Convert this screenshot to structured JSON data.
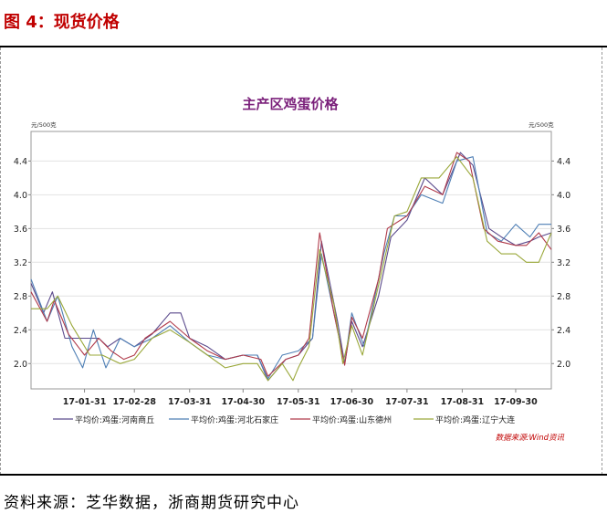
{
  "figure": {
    "label": "图 4：现货价格",
    "source": "资料来源：芝华数据，浙商期货研究中心",
    "credit": "数据来源:Wind资讯"
  },
  "chart_data": {
    "type": "line",
    "title": "主产区鸡蛋价格",
    "ylabel_left": "元/500克",
    "ylabel_right": "元/500克",
    "ylim": [
      1.7,
      4.75
    ],
    "yticks": [
      2.0,
      2.4,
      2.8,
      3.2,
      3.6,
      4.0,
      4.4
    ],
    "ytick_labels": [
      "2.0",
      "2.4",
      "2.8",
      "3.2",
      "3.6",
      "4.0",
      "4.4"
    ],
    "xlim": [
      "2017-01-01",
      "2017-10-20"
    ],
    "xticks": [
      "2017-01-31",
      "2017-02-28",
      "2017-03-31",
      "2017-04-30",
      "2017-05-31",
      "2017-06-30",
      "2017-07-31",
      "2017-08-31",
      "2017-09-30"
    ],
    "xtick_labels": [
      "17-01-31",
      "17-02-28",
      "17-03-31",
      "17-04-30",
      "17-05-31",
      "17-06-30",
      "17-07-31",
      "17-08-31",
      "17-09-30"
    ],
    "grid": true,
    "legend_position": "bottom",
    "series": [
      {
        "name": "平均价:鸡蛋:河南商丘",
        "color": "#5b4a8c",
        "points": [
          [
            "2017-01-01",
            2.95
          ],
          [
            "2017-01-08",
            2.6
          ],
          [
            "2017-01-13",
            2.85
          ],
          [
            "2017-01-20",
            2.3
          ],
          [
            "2017-01-31",
            2.3
          ],
          [
            "2017-02-08",
            2.3
          ],
          [
            "2017-02-13",
            2.2
          ],
          [
            "2017-02-20",
            2.3
          ],
          [
            "2017-02-28",
            2.2
          ],
          [
            "2017-03-10",
            2.35
          ],
          [
            "2017-03-20",
            2.6
          ],
          [
            "2017-03-26",
            2.6
          ],
          [
            "2017-03-31",
            2.3
          ],
          [
            "2017-04-10",
            2.2
          ],
          [
            "2017-04-20",
            2.05
          ],
          [
            "2017-04-30",
            2.1
          ],
          [
            "2017-05-08",
            2.1
          ],
          [
            "2017-05-14",
            1.8
          ],
          [
            "2017-05-24",
            2.05
          ],
          [
            "2017-05-31",
            2.1
          ],
          [
            "2017-06-08",
            2.3
          ],
          [
            "2017-06-13",
            3.45
          ],
          [
            "2017-06-22",
            2.5
          ],
          [
            "2017-06-26",
            2.0
          ],
          [
            "2017-06-30",
            2.5
          ],
          [
            "2017-07-06",
            2.2
          ],
          [
            "2017-07-15",
            2.8
          ],
          [
            "2017-07-22",
            3.5
          ],
          [
            "2017-07-31",
            3.7
          ],
          [
            "2017-08-10",
            4.2
          ],
          [
            "2017-08-20",
            4.0
          ],
          [
            "2017-08-30",
            4.5
          ],
          [
            "2017-09-06",
            4.35
          ],
          [
            "2017-09-15",
            3.6
          ],
          [
            "2017-09-22",
            3.5
          ],
          [
            "2017-09-30",
            3.4
          ],
          [
            "2017-10-08",
            3.45
          ],
          [
            "2017-10-13",
            3.5
          ],
          [
            "2017-10-20",
            3.55
          ]
        ]
      },
      {
        "name": "平均价:鸡蛋:河北石家庄",
        "color": "#4e7fb5",
        "points": [
          [
            "2017-01-01",
            3.0
          ],
          [
            "2017-01-10",
            2.5
          ],
          [
            "2017-01-16",
            2.8
          ],
          [
            "2017-01-24",
            2.2
          ],
          [
            "2017-01-30",
            1.95
          ],
          [
            "2017-02-05",
            2.4
          ],
          [
            "2017-02-12",
            1.95
          ],
          [
            "2017-02-20",
            2.3
          ],
          [
            "2017-02-28",
            2.2
          ],
          [
            "2017-03-10",
            2.3
          ],
          [
            "2017-03-20",
            2.45
          ],
          [
            "2017-03-31",
            2.25
          ],
          [
            "2017-04-10",
            2.1
          ],
          [
            "2017-04-20",
            2.05
          ],
          [
            "2017-04-30",
            2.1
          ],
          [
            "2017-05-08",
            2.1
          ],
          [
            "2017-05-14",
            1.82
          ],
          [
            "2017-05-22",
            2.1
          ],
          [
            "2017-05-31",
            2.15
          ],
          [
            "2017-06-08",
            2.3
          ],
          [
            "2017-06-13",
            3.3
          ],
          [
            "2017-06-20",
            2.6
          ],
          [
            "2017-06-26",
            2.0
          ],
          [
            "2017-06-30",
            2.6
          ],
          [
            "2017-07-07",
            2.2
          ],
          [
            "2017-07-18",
            3.3
          ],
          [
            "2017-07-24",
            3.75
          ],
          [
            "2017-07-31",
            3.75
          ],
          [
            "2017-08-08",
            4.0
          ],
          [
            "2017-08-20",
            3.9
          ],
          [
            "2017-08-28",
            4.4
          ],
          [
            "2017-09-06",
            4.45
          ],
          [
            "2017-09-14",
            3.55
          ],
          [
            "2017-09-22",
            3.45
          ],
          [
            "2017-09-30",
            3.65
          ],
          [
            "2017-10-08",
            3.5
          ],
          [
            "2017-10-13",
            3.65
          ],
          [
            "2017-10-20",
            3.65
          ]
        ]
      },
      {
        "name": "平均价:鸡蛋:山东德州",
        "color": "#b03a4a",
        "points": [
          [
            "2017-01-01",
            2.85
          ],
          [
            "2017-01-10",
            2.5
          ],
          [
            "2017-01-14",
            2.75
          ],
          [
            "2017-01-22",
            2.35
          ],
          [
            "2017-01-31",
            2.1
          ],
          [
            "2017-02-08",
            2.3
          ],
          [
            "2017-02-15",
            2.15
          ],
          [
            "2017-02-22",
            2.05
          ],
          [
            "2017-02-28",
            2.1
          ],
          [
            "2017-03-06",
            2.3
          ],
          [
            "2017-03-20",
            2.5
          ],
          [
            "2017-03-31",
            2.3
          ],
          [
            "2017-04-10",
            2.15
          ],
          [
            "2017-04-20",
            2.05
          ],
          [
            "2017-04-30",
            2.1
          ],
          [
            "2017-05-10",
            2.05
          ],
          [
            "2017-05-14",
            1.85
          ],
          [
            "2017-05-24",
            2.05
          ],
          [
            "2017-05-31",
            2.1
          ],
          [
            "2017-06-06",
            2.3
          ],
          [
            "2017-06-12",
            3.55
          ],
          [
            "2017-06-20",
            2.6
          ],
          [
            "2017-06-26",
            1.98
          ],
          [
            "2017-06-30",
            2.55
          ],
          [
            "2017-07-06",
            2.3
          ],
          [
            "2017-07-15",
            3.0
          ],
          [
            "2017-07-20",
            3.6
          ],
          [
            "2017-07-31",
            3.75
          ],
          [
            "2017-08-10",
            4.1
          ],
          [
            "2017-08-20",
            4.0
          ],
          [
            "2017-08-28",
            4.5
          ],
          [
            "2017-09-04",
            4.4
          ],
          [
            "2017-09-12",
            3.6
          ],
          [
            "2017-09-20",
            3.45
          ],
          [
            "2017-09-30",
            3.4
          ],
          [
            "2017-10-06",
            3.4
          ],
          [
            "2017-10-13",
            3.55
          ],
          [
            "2017-10-20",
            3.35
          ]
        ]
      },
      {
        "name": "平均价:鸡蛋:辽宁大连",
        "color": "#9aa83a",
        "points": [
          [
            "2017-01-01",
            2.65
          ],
          [
            "2017-01-10",
            2.65
          ],
          [
            "2017-01-16",
            2.8
          ],
          [
            "2017-01-24",
            2.45
          ],
          [
            "2017-02-03",
            2.1
          ],
          [
            "2017-02-10",
            2.1
          ],
          [
            "2017-02-20",
            2.0
          ],
          [
            "2017-02-28",
            2.05
          ],
          [
            "2017-03-10",
            2.3
          ],
          [
            "2017-03-20",
            2.4
          ],
          [
            "2017-03-31",
            2.25
          ],
          [
            "2017-04-10",
            2.1
          ],
          [
            "2017-04-20",
            1.95
          ],
          [
            "2017-04-30",
            2.0
          ],
          [
            "2017-05-08",
            2.0
          ],
          [
            "2017-05-14",
            1.8
          ],
          [
            "2017-05-22",
            2.0
          ],
          [
            "2017-05-28",
            1.8
          ],
          [
            "2017-05-31",
            1.95
          ],
          [
            "2017-06-06",
            2.2
          ],
          [
            "2017-06-12",
            3.35
          ],
          [
            "2017-06-20",
            2.7
          ],
          [
            "2017-06-25",
            2.0
          ],
          [
            "2017-06-30",
            2.45
          ],
          [
            "2017-07-06",
            2.1
          ],
          [
            "2017-07-18",
            3.2
          ],
          [
            "2017-07-24",
            3.75
          ],
          [
            "2017-07-31",
            3.8
          ],
          [
            "2017-08-08",
            4.2
          ],
          [
            "2017-08-18",
            4.2
          ],
          [
            "2017-08-28",
            4.45
          ],
          [
            "2017-09-06",
            4.2
          ],
          [
            "2017-09-14",
            3.45
          ],
          [
            "2017-09-22",
            3.3
          ],
          [
            "2017-09-30",
            3.3
          ],
          [
            "2017-10-06",
            3.2
          ],
          [
            "2017-10-13",
            3.2
          ],
          [
            "2017-10-20",
            3.55
          ]
        ]
      }
    ]
  }
}
